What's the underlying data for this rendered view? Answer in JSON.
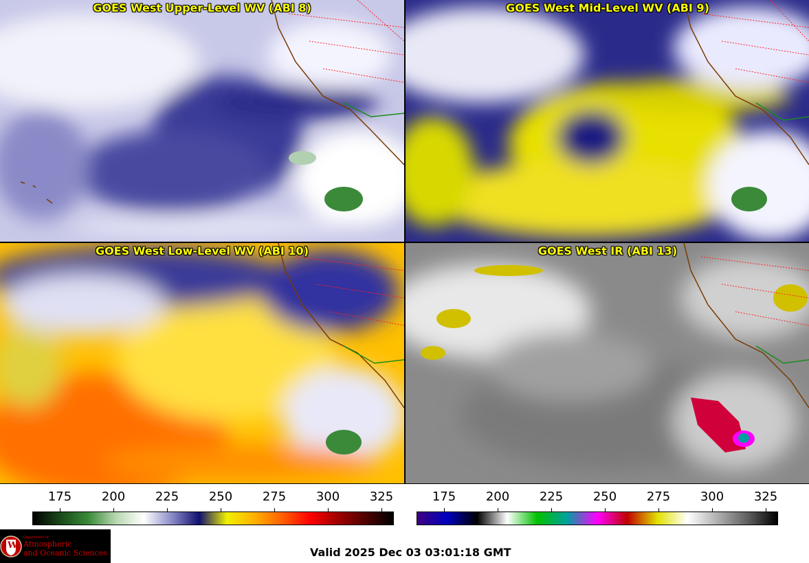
{
  "panels": [
    {
      "title": "GOES West Upper-Level WV (ABI 8)"
    },
    {
      "title": "GOES West Mid-Level WV (ABI 9)"
    },
    {
      "title": "GOES West Low-Level WV (ABI 10)"
    },
    {
      "title": "GOES West IR (ABI 13)"
    }
  ],
  "colorbar_wv": {
    "ticks": [
      "175",
      "200",
      "225",
      "250",
      "275",
      "300",
      "325"
    ],
    "colors": [
      "#000000",
      "#1a4a1a",
      "#3a8a3a",
      "#b8d8b0",
      "#ffffff",
      "#8c8cc8",
      "#101070",
      "#f0f000",
      "#ffb000",
      "#ff6000",
      "#ff0000",
      "#a00000",
      "#500000",
      "#000000"
    ]
  },
  "colorbar_ir": {
    "ticks": [
      "175",
      "200",
      "225",
      "250",
      "275",
      "300",
      "325"
    ],
    "colors": [
      "#400080",
      "#0000c0",
      "#000000",
      "#ffffff",
      "#00c000",
      "#00a0a0",
      "#ff00ff",
      "#c00000",
      "#e0e000",
      "#ffffff",
      "#b0b0b0",
      "#606060",
      "#000000"
    ]
  },
  "logo": {
    "line1": "Department of",
    "line2": "Atmospheric",
    "line3": "and Oceanic Sciences",
    "seal": "W"
  },
  "valid_text": "Valid 2025 Dec 03 03:01:18 GMT"
}
